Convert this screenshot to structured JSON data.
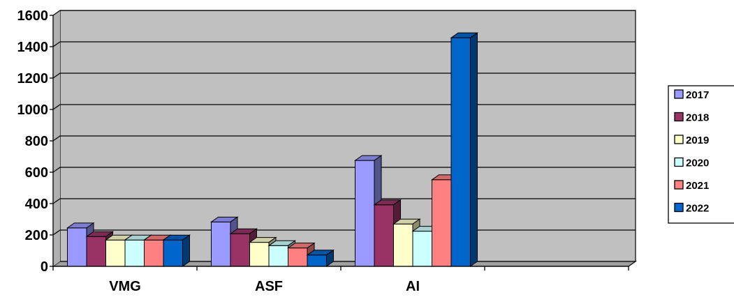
{
  "chart_data": {
    "type": "bar",
    "style": "3d-clustered-column",
    "categories": [
      "VMG",
      "ASF",
      "AI",
      ""
    ],
    "series": [
      {
        "name": "2017",
        "color": "#9999FF",
        "values": [
          245,
          283,
          675,
          null
        ]
      },
      {
        "name": "2018",
        "color": "#993366",
        "values": [
          190,
          208,
          392,
          null
        ]
      },
      {
        "name": "2019",
        "color": "#FFFFCC",
        "values": [
          168,
          153,
          270,
          null
        ]
      },
      {
        "name": "2020",
        "color": "#CCFFFF",
        "values": [
          168,
          132,
          224,
          null
        ]
      },
      {
        "name": "2021",
        "color": "#FF8080",
        "values": [
          168,
          117,
          552,
          null
        ]
      },
      {
        "name": "2022",
        "color": "#0066CC",
        "values": [
          168,
          72,
          1457,
          null
        ]
      }
    ],
    "ylim": [
      0,
      1600
    ],
    "yticks": [
      0,
      200,
      400,
      600,
      800,
      1000,
      1200,
      1400,
      1600
    ],
    "grid": true,
    "legend": "right",
    "title": "",
    "xlabel": "",
    "ylabel": "",
    "wall_color": "#C0C0C0"
  }
}
